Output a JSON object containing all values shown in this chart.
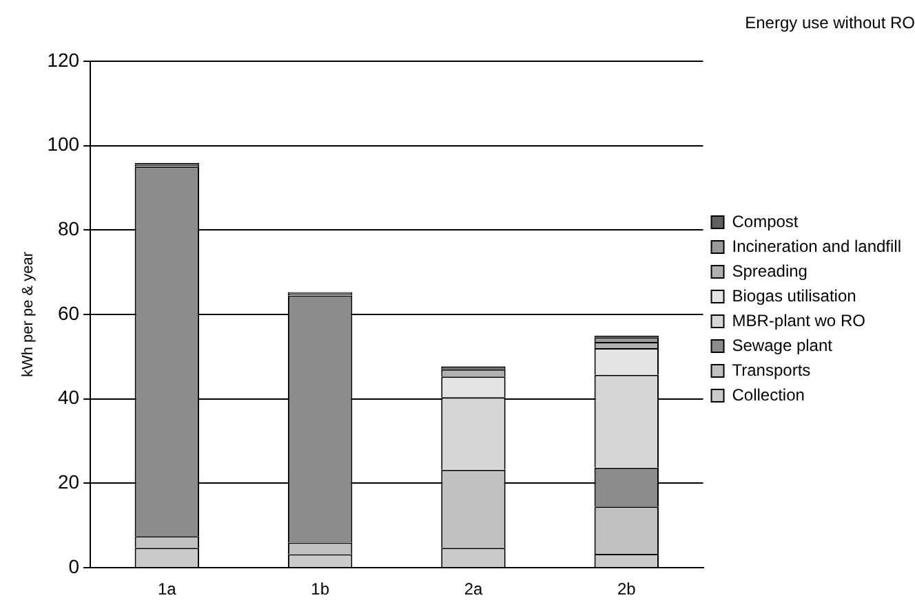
{
  "chart_data": {
    "type": "bar",
    "title": "Energy use without RO",
    "ylabel": "kWh per pe & year",
    "categories": [
      "1a",
      "1b",
      "2a",
      "2b"
    ],
    "stacked": true,
    "ylim": [
      0,
      120
    ],
    "yticks": [
      0,
      20,
      40,
      60,
      80,
      100,
      120
    ],
    "grid": "y",
    "legend": "right",
    "series": [
      {
        "name": "Collection",
        "color": "#cacaca",
        "values": [
          4.7,
          3.2,
          4.7,
          3.3
        ]
      },
      {
        "name": "Transports",
        "color": "#c0c0c0",
        "values": [
          2.8,
          2.8,
          18.5,
          11.2
        ]
      },
      {
        "name": "Sewage plant",
        "color": "#8c8c8c",
        "values": [
          87.5,
          58.5,
          0,
          9.2
        ]
      },
      {
        "name": "MBR-plant wo RO",
        "color": "#d6d6d6",
        "values": [
          0,
          0,
          17.2,
          22.0
        ]
      },
      {
        "name": "Biogas utilisation",
        "color": "#e4e4e4",
        "values": [
          0,
          0,
          4.9,
          6.3
        ]
      },
      {
        "name": "Spreading",
        "color": "#b0b0b0",
        "values": [
          0,
          0,
          1.7,
          1.5
        ]
      },
      {
        "name": "Incineration and landfill",
        "color": "#9a9a9a",
        "values": [
          0.5,
          0.5,
          0,
          1.1
        ]
      },
      {
        "name": "Compost",
        "color": "#606060",
        "values": [
          0.4,
          0.3,
          0.7,
          0.4
        ]
      }
    ]
  }
}
